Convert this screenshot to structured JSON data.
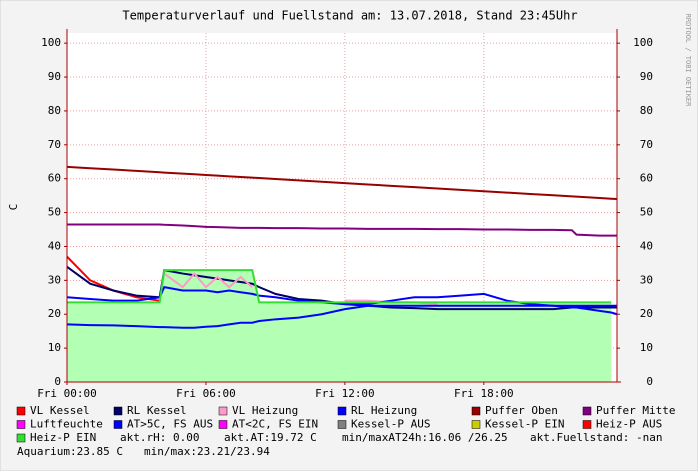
{
  "chart_data": {
    "type": "line",
    "title": "Temperaturverlauf und Fuellstand am: 13.07.2018, Stand 23:45Uhr",
    "y_label": "C",
    "side_label": "RRDTOOL / TOBI OETIKER",
    "x": [
      0,
      1,
      2,
      3,
      4,
      4.2,
      5,
      5.5,
      6,
      6.5,
      7,
      7.5,
      8,
      8.3,
      9,
      10,
      11,
      12,
      13,
      14,
      15,
      16,
      17,
      18,
      19,
      20,
      21,
      21.8,
      22,
      23,
      23.5,
      23.75
    ],
    "xlim": [
      0,
      23.75
    ],
    "xticks": [
      {
        "value": 0,
        "label": "Fri 00:00"
      },
      {
        "value": 6,
        "label": "Fri 06:00"
      },
      {
        "value": 12,
        "label": "Fri 12:00"
      },
      {
        "value": 18,
        "label": "Fri 18:00"
      }
    ],
    "ylim": [
      0,
      103
    ],
    "yticks": [
      0,
      10,
      20,
      30,
      40,
      50,
      60,
      70,
      80,
      90,
      100
    ],
    "y2lim": [
      0,
      103
    ],
    "y2ticks": [
      0,
      10,
      20,
      30,
      40,
      50,
      60,
      70,
      80,
      90,
      100
    ],
    "grid": true,
    "series": [
      {
        "name": "VL Kessel",
        "color": "#ff0000",
        "values": [
          37,
          30,
          27,
          25,
          24,
          null,
          null,
          null,
          null,
          null,
          null,
          null,
          null,
          null,
          null,
          null,
          null,
          null,
          null,
          null,
          null,
          null,
          null,
          null,
          null,
          null,
          null,
          null,
          null,
          null,
          null,
          null
        ]
      },
      {
        "name": "RL Kessel",
        "color": "#000066",
        "values": [
          34,
          29,
          27,
          25.5,
          25,
          33,
          32,
          31.5,
          31,
          30.5,
          30,
          29.5,
          29,
          28,
          26,
          24.5,
          24,
          23,
          22.5,
          22,
          21.8,
          21.5,
          21.5,
          21.5,
          21.5,
          21.5,
          21.5,
          22,
          22,
          22,
          22,
          22
        ]
      },
      {
        "name": "VL Heizung",
        "color": "#ff99cc",
        "values": [
          null,
          null,
          null,
          null,
          null,
          32,
          28,
          32,
          28,
          31,
          28,
          31,
          28,
          null,
          null,
          null,
          null,
          24,
          24,
          23.5,
          23.5,
          23,
          null,
          null,
          null,
          null,
          null,
          null,
          null,
          null,
          null,
          null
        ]
      },
      {
        "name": "RL Heizung",
        "color": "#0000ff",
        "values": [
          25,
          24.5,
          24,
          24,
          25,
          28,
          27,
          27,
          27,
          26.5,
          27,
          26.5,
          26,
          25.5,
          25,
          24,
          23.5,
          23,
          23,
          24,
          25,
          25,
          25.5,
          26,
          24,
          23,
          22.5,
          22,
          22,
          21,
          20.5,
          20
        ]
      },
      {
        "name": "Puffer Oben",
        "color": "#990000",
        "values": [
          63.5,
          63.1,
          62.7,
          62.3,
          61.9,
          61.8,
          61.5,
          61.3,
          61.1,
          60.9,
          60.7,
          60.5,
          60.3,
          60.2,
          59.9,
          59.5,
          59.1,
          58.7,
          58.3,
          57.9,
          57.5,
          57.1,
          56.7,
          56.3,
          55.9,
          55.5,
          55.1,
          54.8,
          54.7,
          54.3,
          54.1,
          54.0
        ]
      },
      {
        "name": "Puffer Mitte",
        "color": "#800080",
        "values": [
          46.5,
          46.5,
          46.5,
          46.5,
          46.5,
          46.4,
          46.2,
          46,
          45.8,
          45.7,
          45.6,
          45.5,
          45.5,
          45.5,
          45.4,
          45.4,
          45.3,
          45.3,
          45.2,
          45.2,
          45.2,
          45.1,
          45.1,
          45.0,
          45.0,
          44.9,
          44.9,
          44.8,
          43.5,
          43.2,
          43.2,
          43.2
        ]
      },
      {
        "name": "Luftfeuchte",
        "color": "#ff00ff",
        "values": [
          null,
          null,
          null,
          null,
          null,
          null,
          null,
          null,
          null,
          null,
          null,
          null,
          null,
          null,
          null,
          null,
          null,
          null,
          null,
          null,
          null,
          null,
          null,
          null,
          null,
          null,
          null,
          null,
          null,
          null,
          null,
          null
        ]
      },
      {
        "name": "AT>5C, FS AUS",
        "color": "#0000ff",
        "values": [
          17,
          16.8,
          16.7,
          16.5,
          16.2,
          16.2,
          16,
          16,
          16.3,
          16.5,
          17,
          17.5,
          17.5,
          18,
          18.5,
          19,
          20,
          21.5,
          22.5,
          22.5,
          22.5,
          22.5,
          22.5,
          22.5,
          22.5,
          22.5,
          22.5,
          22.5,
          22.5,
          22.5,
          22.5,
          22.5
        ]
      },
      {
        "name": "AT<2C, FS EIN",
        "color": "#ff00ff",
        "values": [
          null,
          null,
          null,
          null,
          null,
          null,
          null,
          null,
          null,
          null,
          null,
          null,
          null,
          null,
          null,
          null,
          null,
          null,
          null,
          null,
          null,
          null,
          null,
          null,
          null,
          null,
          null,
          null,
          null,
          null,
          null,
          null
        ]
      },
      {
        "name": "Kessel-P AUS",
        "color": "#808080",
        "values": [
          null,
          null,
          null,
          null,
          null,
          null,
          null,
          null,
          null,
          null,
          null,
          null,
          null,
          null,
          null,
          null,
          null,
          null,
          null,
          null,
          null,
          null,
          null,
          null,
          null,
          null,
          null,
          null,
          null,
          null,
          null,
          null
        ]
      },
      {
        "name": "Kessel-P EIN",
        "color": "#cccc00",
        "values": [
          null,
          null,
          null,
          null,
          null,
          null,
          null,
          null,
          null,
          null,
          null,
          null,
          null,
          null,
          null,
          null,
          null,
          null,
          null,
          null,
          null,
          null,
          null,
          null,
          null,
          null,
          null,
          null,
          null,
          null,
          null,
          null
        ]
      },
      {
        "name": "Heiz-P AUS",
        "color": "#ff0000",
        "values": [
          null,
          null,
          null,
          null,
          null,
          null,
          null,
          null,
          null,
          null,
          null,
          null,
          null,
          null,
          null,
          null,
          null,
          null,
          null,
          null,
          null,
          null,
          null,
          null,
          null,
          null,
          null,
          null,
          null,
          null,
          null,
          null
        ]
      },
      {
        "name": "Heiz-P EIN",
        "color": "#33dd33",
        "fill": "#b3ffb3",
        "values": [
          23.5,
          23.5,
          23.5,
          23.5,
          23.5,
          33,
          33,
          33,
          33,
          33,
          33,
          33,
          33,
          23.5,
          23.5,
          23.5,
          23.5,
          23.5,
          23.5,
          23.5,
          23.5,
          23.5,
          23.5,
          23.5,
          23.5,
          23.5,
          23.5,
          23.5,
          23.5,
          23.5,
          23.5,
          null
        ]
      }
    ],
    "notes": [
      "akt.rH: 0.00",
      "akt.AT:19.72 C",
      "min/maxAT24h:16.06 /26.25",
      "akt.Fuellstand: -nan",
      "Aquarium:23.85 C",
      "min/max:23.21/23.94"
    ]
  }
}
